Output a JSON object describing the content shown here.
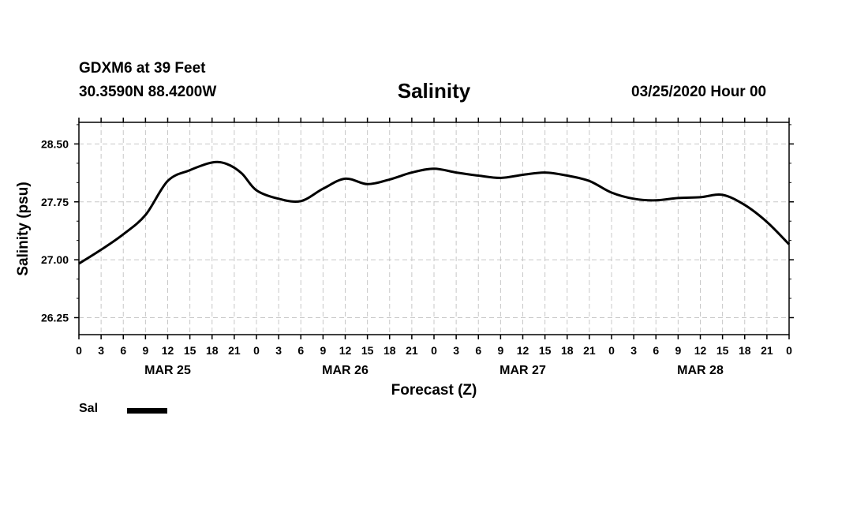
{
  "header": {
    "station": "GDXM6 at 39 Feet",
    "coordinates": "30.3590N 88.4200W",
    "runtime": "03/25/2020 Hour 00"
  },
  "legend": {
    "label": "Sal",
    "color": "#000000"
  },
  "chart_data": {
    "type": "line",
    "title": "Salinity",
    "xlabel": "Forecast (Z)",
    "ylabel": "Salinity (psu)",
    "xlim": [
      0,
      96
    ],
    "ylim": [
      26.03,
      28.78
    ],
    "yticks": [
      "26.25",
      "27.00",
      "27.75",
      "28.50"
    ],
    "xtick_labels": [
      "0",
      "3",
      "6",
      "9",
      "12",
      "15",
      "18",
      "21",
      "0",
      "3",
      "6",
      "9",
      "12",
      "15",
      "18",
      "21",
      "0",
      "3",
      "6",
      "9",
      "12",
      "15",
      "18",
      "21",
      "0",
      "3",
      "6",
      "9",
      "12",
      "15",
      "18",
      "21",
      "0"
    ],
    "day_labels": [
      {
        "hour": 12,
        "label": "MAR 25"
      },
      {
        "hour": 36,
        "label": "MAR 26"
      },
      {
        "hour": 60,
        "label": "MAR 27"
      },
      {
        "hour": 84,
        "label": "MAR 28"
      }
    ],
    "grid": true,
    "series": [
      {
        "name": "Sal",
        "x": [
          0,
          3,
          6,
          9,
          12,
          15,
          18,
          20,
          22,
          24,
          27,
          30,
          33,
          36,
          39,
          42,
          45,
          48,
          51,
          54,
          57,
          60,
          63,
          66,
          69,
          72,
          75,
          78,
          81,
          84,
          87,
          90,
          93,
          96
        ],
        "values": [
          26.95,
          27.13,
          27.33,
          27.58,
          28.02,
          28.16,
          28.26,
          28.24,
          28.12,
          27.9,
          27.79,
          27.76,
          27.92,
          28.05,
          27.98,
          28.04,
          28.13,
          28.18,
          28.13,
          28.09,
          28.06,
          28.1,
          28.13,
          28.09,
          28.02,
          27.87,
          27.79,
          27.77,
          27.8,
          27.81,
          27.84,
          27.71,
          27.49,
          27.2
        ]
      }
    ]
  }
}
